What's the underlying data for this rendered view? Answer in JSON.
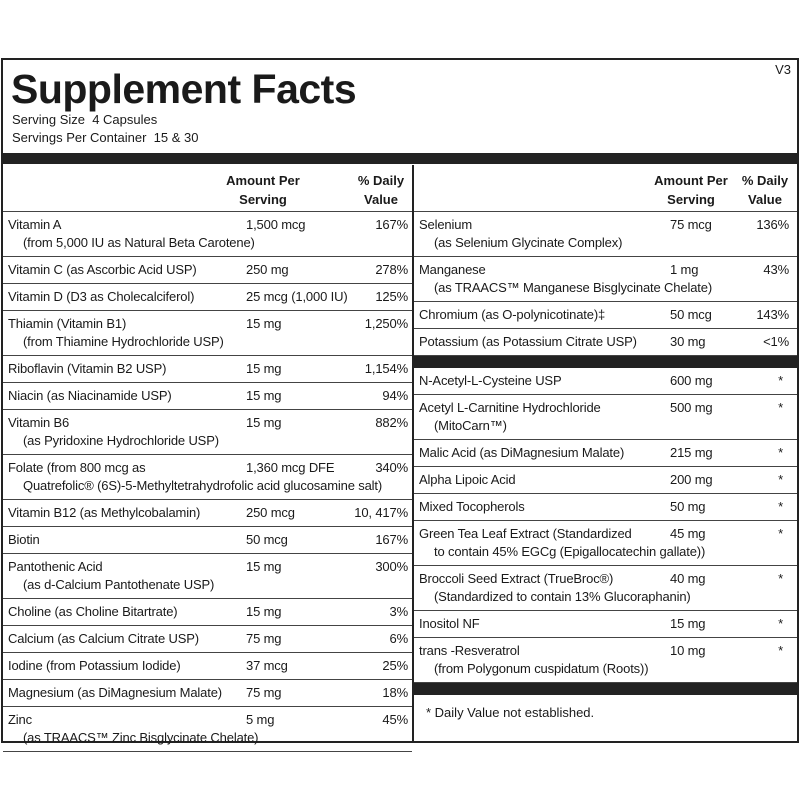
{
  "version": "V3",
  "title": "Supplement Facts",
  "serving_size": "Serving Size  4 Capsules",
  "servings_per_container": "Servings Per Container  15 & 30",
  "column_headers": {
    "amount": "Amount Per Serving",
    "daily_value": "% Daily Value"
  },
  "left_rows": [
    {
      "name": "Vitamin A",
      "detail": "(from 5,000 IU as Natural Beta Carotene)",
      "amount": "1,500 mcg",
      "daily_value": "167%"
    },
    {
      "name": "Vitamin C (as Ascorbic Acid USP)",
      "amount": "250 mg",
      "daily_value": "278%"
    },
    {
      "name": "Vitamin D (D3 as Cholecalciferol)",
      "amount": "25 mcg (1,000 IU)",
      "daily_value": "125%"
    },
    {
      "name": "Thiamin (Vitamin B1)",
      "detail": "(from Thiamine Hydrochloride USP)",
      "amount": "15 mg",
      "daily_value": "1,250%"
    },
    {
      "name": "Riboflavin (Vitamin B2 USP)",
      "amount": "15 mg",
      "daily_value": "1,154%"
    },
    {
      "name": "Niacin (as Niacinamide USP)",
      "amount": "15 mg",
      "daily_value": "94%"
    },
    {
      "name": "Vitamin B6",
      "detail": "(as Pyridoxine Hydrochloride USP)",
      "amount": "15 mg",
      "daily_value": "882%"
    },
    {
      "name": "Folate (from 800 mcg as",
      "detail": "Quatrefolic® (6S)-5-Methyltetrahydrofolic acid glucosamine salt)",
      "amount": "1,360 mcg DFE",
      "daily_value": "340%"
    },
    {
      "name": "Vitamin B12 (as Methylcobalamin)",
      "amount": "250 mcg",
      "daily_value": "10, 417%"
    },
    {
      "name": "Biotin",
      "amount": "50 mcg",
      "daily_value": "167%"
    },
    {
      "name": "Pantothenic Acid",
      "detail": "(as d-Calcium Pantothenate USP)",
      "amount": "15 mg",
      "daily_value": "300%"
    },
    {
      "name": "Choline (as Choline Bitartrate)",
      "amount": "15 mg",
      "daily_value": "3%"
    },
    {
      "name": "Calcium (as Calcium Citrate USP)",
      "amount": "75 mg",
      "daily_value": "6%"
    },
    {
      "name": "Iodine (from Potassium Iodide)",
      "amount": "37 mcg",
      "daily_value": "25%"
    },
    {
      "name": "Magnesium (as DiMagnesium Malate)",
      "amount": "75 mg",
      "daily_value": "18%"
    },
    {
      "name": "Zinc",
      "detail": "(as TRAACS™ Zinc Bisglycinate Chelate)",
      "amount": "5 mg",
      "daily_value": "45%"
    }
  ],
  "right_rows_top": [
    {
      "name": "Selenium",
      "detail": "(as Selenium Glycinate Complex)",
      "amount": "75 mcg",
      "daily_value": "136%"
    },
    {
      "name": "Manganese",
      "detail": "(as TRAACS™ Manganese Bisglycinate Chelate)",
      "amount": "1 mg",
      "daily_value": "43%"
    },
    {
      "name": "Chromium (as O-polynicotinate)‡",
      "amount": "50 mcg",
      "daily_value": "143%"
    },
    {
      "name": "Potassium (as Potassium Citrate USP)",
      "amount": "30 mg",
      "daily_value": "<1%"
    }
  ],
  "right_rows_bottom": [
    {
      "name": "N-Acetyl-L-Cysteine USP",
      "amount": "600 mg",
      "daily_value": "*"
    },
    {
      "name": "Acetyl L-Carnitine Hydrochloride",
      "detail": "(MitoCarn™)",
      "amount": "500 mg",
      "daily_value": "*"
    },
    {
      "name": "Malic Acid (as DiMagnesium Malate)",
      "amount": "215 mg",
      "daily_value": "*"
    },
    {
      "name": "Alpha Lipoic Acid",
      "amount": "200 mg",
      "daily_value": "*"
    },
    {
      "name": "Mixed Tocopherols",
      "amount": "50 mg",
      "daily_value": "*"
    },
    {
      "name": "Green Tea Leaf Extract (Standardized",
      "detail": "to contain 45% EGCg (Epigallocatechin gallate))",
      "amount": "45 mg",
      "daily_value": "*"
    },
    {
      "name": "Broccoli Seed Extract (TrueBroc®)",
      "detail": "(Standardized to contain 13% Glucoraphanin)",
      "amount": "40 mg",
      "daily_value": "*"
    },
    {
      "name": "Inositol NF",
      "amount": "15 mg",
      "daily_value": "*"
    },
    {
      "name": "trans -Resveratrol",
      "detail": "(from Polygonum cuspidatum (Roots))",
      "amount": "10 mg",
      "daily_value": "*"
    }
  ],
  "footnote": "*  Daily Value not established."
}
